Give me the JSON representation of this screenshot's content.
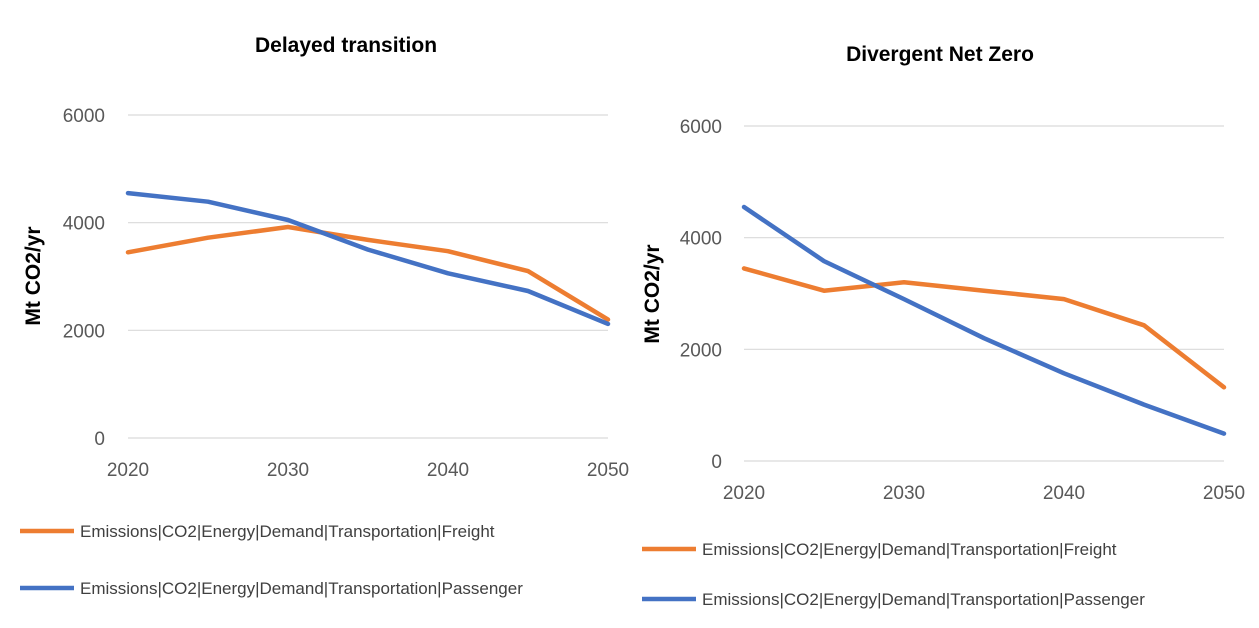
{
  "chart_data": [
    {
      "type": "line",
      "title": "Delayed transition",
      "ylabel": "Mt CO2/yr",
      "xlabel": "",
      "ylim": [
        0,
        6000
      ],
      "xlim": [
        2020,
        2050
      ],
      "yticks": [
        "0",
        "2000",
        "4000",
        "6000"
      ],
      "xticks": [
        "2020",
        "2030",
        "2040",
        "2050"
      ],
      "grid": true,
      "legend_position": "bottom",
      "series": [
        {
          "name": "Emissions|CO2|Energy|Demand|Transportation|Freight",
          "color": "#ed7d31",
          "x": [
            2020,
            2025,
            2030,
            2035,
            2040,
            2045,
            2050
          ],
          "values": [
            3450,
            3720,
            3920,
            3680,
            3470,
            3100,
            2200
          ]
        },
        {
          "name": "Emissions|CO2|Energy|Demand|Transportation|Passenger",
          "color": "#4472c4",
          "x": [
            2020,
            2025,
            2030,
            2035,
            2040,
            2045,
            2050
          ],
          "values": [
            4550,
            4390,
            4050,
            3500,
            3060,
            2730,
            2120
          ]
        }
      ]
    },
    {
      "type": "line",
      "title": "Divergent Net Zero",
      "ylabel": "Mt CO2/yr",
      "xlabel": "",
      "ylim": [
        0,
        6000
      ],
      "xlim": [
        2020,
        2050
      ],
      "yticks": [
        "0",
        "2000",
        "4000",
        "6000"
      ],
      "xticks": [
        "2020",
        "2030",
        "2040",
        "2050"
      ],
      "grid": true,
      "legend_position": "bottom",
      "series": [
        {
          "name": "Emissions|CO2|Energy|Demand|Transportation|Freight",
          "color": "#ed7d31",
          "x": [
            2020,
            2025,
            2030,
            2035,
            2040,
            2045,
            2050
          ],
          "values": [
            3450,
            3050,
            3200,
            3050,
            2900,
            2430,
            1320
          ]
        },
        {
          "name": "Emissions|CO2|Energy|Demand|Transportation|Passenger",
          "color": "#4472c4",
          "x": [
            2020,
            2025,
            2030,
            2035,
            2040,
            2045,
            2050
          ],
          "values": [
            4550,
            3580,
            2900,
            2200,
            1570,
            1010,
            490
          ]
        }
      ]
    }
  ]
}
